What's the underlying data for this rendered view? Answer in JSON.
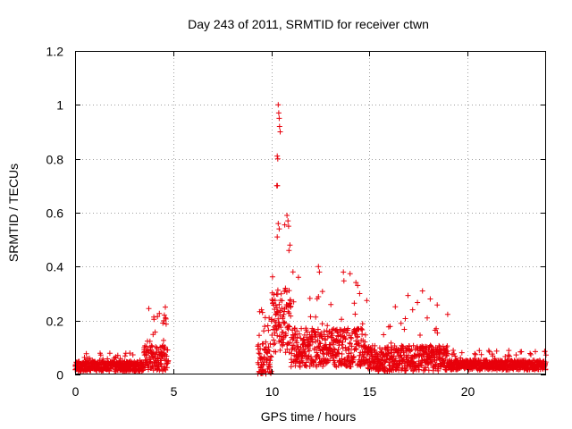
{
  "chart_data": {
    "type": "scatter",
    "title": "Day 243 of 2011, SRMTID for receiver ctwn",
    "xlabel": "GPS time / hours",
    "ylabel": "SRMTID / TECUs",
    "xlim": [
      0,
      24
    ],
    "ylim": [
      0,
      1.2
    ],
    "xticks": [
      0,
      5,
      10,
      15,
      20
    ],
    "yticks": [
      0,
      0.2,
      0.4,
      0.6,
      0.8,
      1,
      1.2
    ],
    "ytick_labels": [
      "0",
      "0.2",
      "0.4",
      "0.6",
      "0.8",
      "1",
      "1.2"
    ],
    "grid": true,
    "marker": "+",
    "color": "#e8000b",
    "series": [
      {
        "name": "SRMTID",
        "segments": [
          {
            "x_start": 0.0,
            "x_end": 3.5,
            "base": 0.03,
            "spread": 0.03,
            "spike_prob": 0.08,
            "spike_max": 0.08
          },
          {
            "x_start": 3.5,
            "x_end": 4.75,
            "base": 0.06,
            "spread": 0.08,
            "spike_prob": 0.15,
            "spike_max": 0.25
          },
          {
            "x_start": 9.3,
            "x_end": 10.0,
            "base": 0.05,
            "spread": 0.12,
            "spike_prob": 0.1,
            "spike_max": 0.24
          },
          {
            "x_start": 10.0,
            "x_end": 11.0,
            "base": 0.2,
            "spread": 0.2,
            "spike_prob": 0.1,
            "spike_max": 0.6
          },
          {
            "x_start": 11.0,
            "x_end": 14.8,
            "base": 0.1,
            "spread": 0.12,
            "spike_prob": 0.08,
            "spike_max": 0.4
          },
          {
            "x_start": 14.8,
            "x_end": 19.0,
            "base": 0.06,
            "spread": 0.08,
            "spike_prob": 0.06,
            "spike_max": 0.3
          },
          {
            "x_start": 19.0,
            "x_end": 24.0,
            "base": 0.035,
            "spread": 0.03,
            "spike_prob": 0.05,
            "spike_max": 0.09
          }
        ],
        "highlights": [
          {
            "x": 10.35,
            "y": 1.0
          },
          {
            "x": 10.38,
            "y": 0.97
          },
          {
            "x": 10.4,
            "y": 0.95
          },
          {
            "x": 10.42,
            "y": 0.92
          },
          {
            "x": 10.45,
            "y": 0.9
          },
          {
            "x": 10.3,
            "y": 0.81
          },
          {
            "x": 10.33,
            "y": 0.8
          },
          {
            "x": 10.28,
            "y": 0.7
          },
          {
            "x": 10.31,
            "y": 0.7
          },
          {
            "x": 10.8,
            "y": 0.59
          },
          {
            "x": 10.85,
            "y": 0.57
          },
          {
            "x": 10.88,
            "y": 0.55
          },
          {
            "x": 10.35,
            "y": 0.56
          },
          {
            "x": 10.4,
            "y": 0.54
          },
          {
            "x": 10.95,
            "y": 0.48
          },
          {
            "x": 10.9,
            "y": 0.46
          },
          {
            "x": 10.3,
            "y": 0.51
          },
          {
            "x": 12.4,
            "y": 0.4
          },
          {
            "x": 12.45,
            "y": 0.38
          },
          {
            "x": 14.4,
            "y": 0.33
          },
          {
            "x": 14.5,
            "y": 0.3
          },
          {
            "x": 17.7,
            "y": 0.31
          },
          {
            "x": 18.1,
            "y": 0.28
          },
          {
            "x": 17.2,
            "y": 0.24
          },
          {
            "x": 4.6,
            "y": 0.25
          },
          {
            "x": 4.55,
            "y": 0.22
          },
          {
            "x": 9.5,
            "y": 0.24
          },
          {
            "x": 9.55,
            "y": 0.23
          }
        ]
      }
    ]
  }
}
